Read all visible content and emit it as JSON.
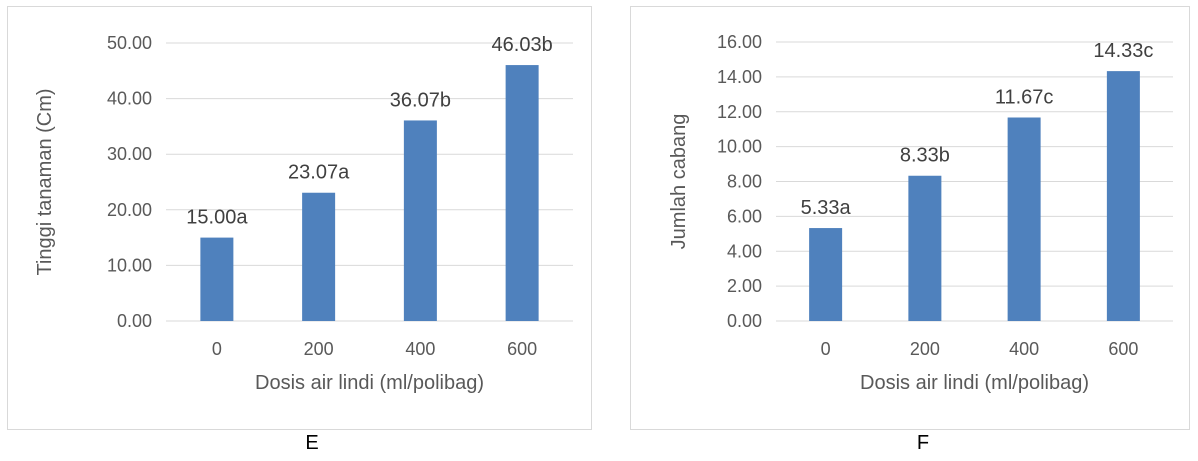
{
  "colors": {
    "bar": "#4f81bd",
    "grid": "#d9d9d9",
    "text": "#595959"
  },
  "chart_data": [
    {
      "panel": "E",
      "type": "bar",
      "title": "",
      "categories": [
        "0",
        "200",
        "400",
        "600"
      ],
      "values": [
        15.0,
        23.07,
        36.07,
        46.03
      ],
      "data_labels": [
        "15.00a",
        "23.07a",
        "36.07b",
        "46.03b"
      ],
      "xlabel": "Dosis air lindi (ml/polibag)",
      "ylabel": "Tinggi tanaman (Cm)",
      "ylim": [
        0,
        50
      ],
      "yticks": [
        "0.00",
        "10.00",
        "20.00",
        "30.00",
        "40.00",
        "50.00"
      ],
      "ytick_values": [
        0,
        10,
        20,
        30,
        40,
        50
      ],
      "grid": true,
      "legend": "none"
    },
    {
      "panel": "F",
      "type": "bar",
      "title": "",
      "categories": [
        "0",
        "200",
        "400",
        "600"
      ],
      "values": [
        5.33,
        8.33,
        11.67,
        14.33
      ],
      "data_labels": [
        "5.33a",
        "8.33b",
        "11.67c",
        "14.33c"
      ],
      "xlabel": "Dosis air lindi (ml/polibag)",
      "ylabel": "Jumlah cabang",
      "ylim": [
        0,
        16
      ],
      "yticks": [
        "0.00",
        "2.00",
        "4.00",
        "6.00",
        "8.00",
        "10.00",
        "12.00",
        "14.00",
        "16.00"
      ],
      "ytick_values": [
        0,
        2,
        4,
        6,
        8,
        10,
        12,
        14,
        16
      ],
      "grid": true,
      "legend": "none"
    }
  ]
}
